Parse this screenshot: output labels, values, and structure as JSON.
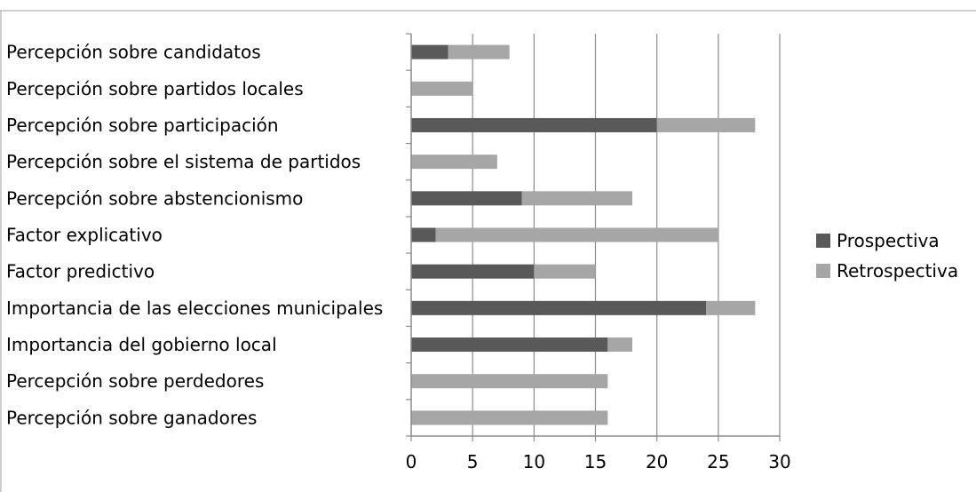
{
  "chart_data": {
    "type": "bar",
    "orientation": "horizontal",
    "stacked": true,
    "categories": [
      "Percepción sobre candidatos",
      "Percepción sobre partidos locales",
      "Percepción sobre participación",
      "Percepción sobre el sistema de partidos",
      "Percepción sobre abstencionismo",
      "Factor explicativo",
      "Factor predictivo",
      "Importancia de las elecciones municipales",
      "Importancia del gobierno local",
      "Percepción sobre perdedores",
      "Percepción sobre ganadores"
    ],
    "series": [
      {
        "name": "Prospectiva",
        "values": [
          3,
          0,
          20,
          0,
          9,
          2,
          10,
          24,
          16,
          0,
          0
        ],
        "color": "#595959"
      },
      {
        "name": "Retrospectiva",
        "values": [
          5,
          5,
          8,
          7,
          9,
          23,
          5,
          4,
          2,
          16,
          16
        ],
        "color": "#a6a6a6"
      }
    ],
    "xlim": [
      0,
      30
    ],
    "xticks": [
      "0",
      "5",
      "10",
      "15",
      "20",
      "25",
      "30"
    ],
    "grid": true,
    "legend_position": "right",
    "colors": {
      "gridline": "#8c8c8c",
      "axis": "#8c8c8c",
      "frame": "#bfbfbf"
    }
  }
}
